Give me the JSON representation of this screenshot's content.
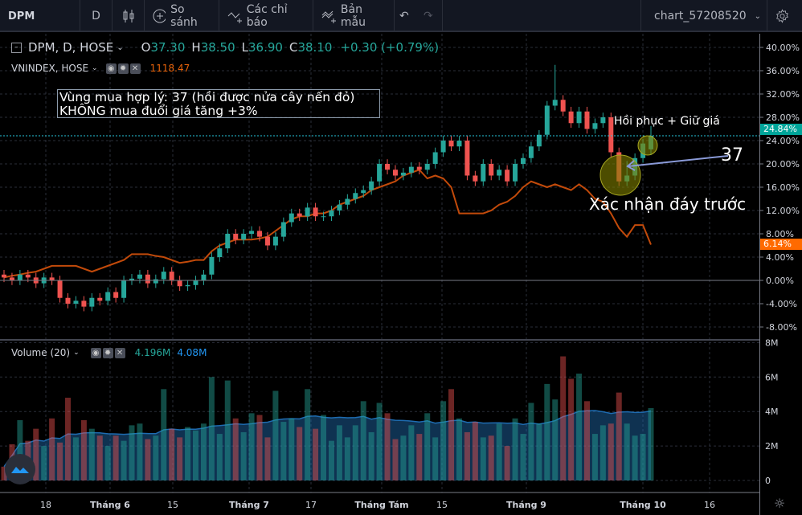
{
  "toolbar": {
    "symbol": "DPM",
    "interval": "D",
    "compare_label": "So sánh",
    "indicators_label": "Các chỉ báo",
    "templates_label": "Bản mẫu",
    "layout_name": "chart_57208520"
  },
  "legend": {
    "main_symbol": "DPM, D, HOSE",
    "o_label": "O",
    "o": "37.30",
    "h_label": "H",
    "h": "38.50",
    "l_label": "L",
    "l": "36.90",
    "c_label": "C",
    "c": "38.10",
    "change": "+0.30 (+0.79%)",
    "compare_symbol": "VNINDEX, HOSE",
    "compare_value": "1118.47",
    "volume_title": "Volume (20)",
    "volume_value": "4.196M",
    "volume_ma_value": "4.08M"
  },
  "annotations": {
    "note_line1": "Vùng mua hợp lý: 37 (hồi được nửa cây nến đỏ)",
    "note_line2": "KHÔNG mua đuổi giá tăng +3%",
    "recovery": "Hồi phục + Giữ giá",
    "price_37": "37",
    "confirm_bottom": "Xác nhận đáy trước"
  },
  "price_labels": {
    "last": "24.84%",
    "compare_last": "6.14%"
  },
  "colors": {
    "up": "#26a69a",
    "down": "#ef5350",
    "compare": "#c24a0a",
    "volume_ma": "#1e5a8c",
    "last_price": "#00a59a",
    "compare_label": "#ff6a00"
  },
  "chart_data": {
    "type": "candlestick",
    "y_axis_ticks": [
      "40.00%",
      "36.00%",
      "32.00%",
      "28.00%",
      "24.00%",
      "20.00%",
      "16.00%",
      "12.00%",
      "8.00%",
      "4.00%",
      "0.00%",
      "-4.00%",
      "-8.00%"
    ],
    "ylim": [
      -9.5,
      41.5
    ],
    "x_axis_ticks": [
      "18",
      "Tháng 6",
      "15",
      "Tháng 7",
      "17",
      "Tháng Tám",
      "15",
      "Tháng 9",
      "Tháng 10",
      "16"
    ],
    "open": [
      1,
      0.5,
      0,
      1,
      0.5,
      -0.5,
      0.5,
      0,
      -3,
      -4,
      -3.5,
      -4.5,
      -3,
      -3.5,
      -2,
      -3,
      0,
      0.3,
      1,
      -0.5,
      0.2,
      1.5,
      0,
      -1,
      -0.8,
      0,
      1,
      4,
      5.5,
      8,
      7,
      8,
      8.5,
      7.5,
      6,
      7.5,
      10,
      11.5,
      11,
      12.5,
      11,
      11,
      12,
      13,
      14,
      15,
      15.5,
      17,
      20,
      19,
      18,
      18.5,
      19.5,
      19,
      20,
      22,
      24,
      23,
      24,
      18,
      17,
      20,
      18,
      19,
      17,
      20,
      21,
      23,
      25,
      30,
      31,
      29,
      27,
      29,
      26,
      27,
      28,
      22,
      17,
      18,
      21,
      22.5
    ],
    "high": [
      1.8,
      1.3,
      1.8,
      1.8,
      1.3,
      1.3,
      1.3,
      0.8,
      -2.2,
      -2.7,
      -2.7,
      -2.2,
      -2.2,
      -1.2,
      -1.2,
      0.8,
      1.1,
      1.8,
      1.8,
      1.0,
      2.3,
      2.3,
      0.8,
      0,
      0.8,
      1.8,
      4.8,
      6.3,
      8.8,
      8.8,
      8.8,
      9.3,
      9.3,
      8.3,
      8.3,
      10.8,
      12.3,
      12.3,
      13.3,
      13.3,
      11.8,
      12.8,
      13.8,
      14.8,
      15.8,
      16.3,
      17.8,
      20.8,
      20.8,
      19.8,
      19.3,
      20.3,
      20.3,
      20.8,
      22.8,
      24.8,
      24.8,
      24.8,
      24.8,
      18.8,
      20.8,
      20.8,
      19.8,
      19.8,
      20.8,
      21.8,
      23.8,
      25.8,
      30.8,
      37,
      31.8,
      29.8,
      29.8,
      29.8,
      27.8,
      28.8,
      28.8,
      22.8,
      20.5,
      21.8,
      24.3,
      26.5
    ],
    "low": [
      -0.3,
      -0.8,
      -0.8,
      -0.3,
      -1.3,
      -1.3,
      -0.8,
      -3.8,
      -4.8,
      -4.8,
      -5.3,
      -5.3,
      -4.3,
      -4.3,
      -3.8,
      -3.8,
      -0.8,
      -0.5,
      -1.3,
      -1.3,
      -0.6,
      -0.8,
      -1.8,
      -1.8,
      -1.6,
      -0.8,
      0.2,
      3.2,
      4.7,
      6.2,
      6.2,
      7.2,
      6.7,
      5.2,
      5.2,
      6.7,
      9.2,
      10.2,
      10.2,
      10.2,
      10.2,
      10.2,
      11.2,
      12.2,
      13.2,
      14.2,
      14.7,
      16.2,
      18.2,
      17.2,
      17.2,
      17.7,
      18.2,
      18.2,
      19.2,
      21.2,
      22.2,
      22.2,
      17.2,
      16.2,
      16.2,
      17.2,
      17.2,
      16.2,
      16.2,
      19.2,
      20.2,
      22.2,
      24.2,
      29.2,
      28.2,
      26.2,
      26.2,
      25.2,
      25.2,
      26.2,
      21.2,
      16.2,
      16.2,
      17.2,
      20.2,
      21.5
    ],
    "close": [
      0.5,
      0,
      1,
      0.5,
      -0.5,
      0.5,
      0,
      -3,
      -4,
      -3.5,
      -4.5,
      -3,
      -3.5,
      -2,
      -3,
      0,
      0.3,
      1,
      -0.5,
      0.2,
      1.5,
      0,
      -1,
      -0.8,
      0,
      1,
      4,
      5.5,
      8,
      7,
      8,
      8.5,
      7.5,
      6,
      7.5,
      10,
      11.5,
      11,
      12.5,
      11,
      11,
      12,
      13,
      14,
      15,
      15.5,
      17,
      20,
      19,
      18,
      18.5,
      19.5,
      19,
      20,
      22,
      24,
      23,
      24,
      18,
      17,
      20,
      18,
      19,
      17,
      20,
      21,
      23,
      25,
      30,
      31,
      29,
      27,
      29,
      26,
      27,
      28,
      22,
      17,
      18,
      21,
      23.5,
      24.84
    ],
    "compare_series": [
      0.5,
      0.8,
      1,
      1.3,
      1.5,
      2,
      2.5,
      2.5,
      2.5,
      2.5,
      2,
      1.5,
      2,
      2.5,
      3,
      3.5,
      4.5,
      4.5,
      4.5,
      4.2,
      4,
      3.5,
      3,
      3.2,
      3.5,
      3.5,
      5,
      6,
      6.5,
      7,
      7,
      7,
      7.2,
      7.5,
      8.5,
      9.5,
      10.5,
      11,
      11,
      11.5,
      11.5,
      12,
      13,
      13.5,
      14,
      14.5,
      15.5,
      16,
      16.5,
      17,
      18,
      18.5,
      19,
      17.5,
      18,
      17.5,
      16,
      11.5,
      11.5,
      11.5,
      11.5,
      12,
      13,
      13.5,
      14.5,
      16,
      17,
      16.5,
      16,
      16.5,
      16,
      15.5,
      16.5,
      15.5,
      14,
      13.5,
      11.5,
      9,
      7.5,
      9.5,
      9.5,
      6.14
    ],
    "volume_ticks": [
      "8M",
      "6M",
      "4M",
      "2M",
      "0"
    ],
    "volume_ylim": [
      0,
      8
    ],
    "volume_millions": [
      0.8,
      2.1,
      3.5,
      2.3,
      3.0,
      2.0,
      3.6,
      2.2,
      4.8,
      2.5,
      3.5,
      3.0,
      2.6,
      2.0,
      2.6,
      2.3,
      3.2,
      3.3,
      2.4,
      2.6,
      5.3,
      3.0,
      2.5,
      3.1,
      2.9,
      3.3,
      6.0,
      2.7,
      5.8,
      3.6,
      2.8,
      3.9,
      3.8,
      2.5,
      5.2,
      3.4,
      3.6,
      3.1,
      5.3,
      3.0,
      3.8,
      2.3,
      3.2,
      2.5,
      3.2,
      4.6,
      2.8,
      4.5,
      3.9,
      2.4,
      2.6,
      3.2,
      2.7,
      3.9,
      2.5,
      4.6,
      5.3,
      3.6,
      2.8,
      3.4,
      2.5,
      2.6,
      3.3,
      2.0,
      3.6,
      2.7,
      4.5,
      3.3,
      5.6,
      4.7,
      7.2,
      5.9,
      6.2,
      4.6,
      2.7,
      3.2,
      3.3,
      5.1,
      3.3,
      2.6,
      2.7,
      4.196
    ],
    "volume_ma_period": 20
  }
}
